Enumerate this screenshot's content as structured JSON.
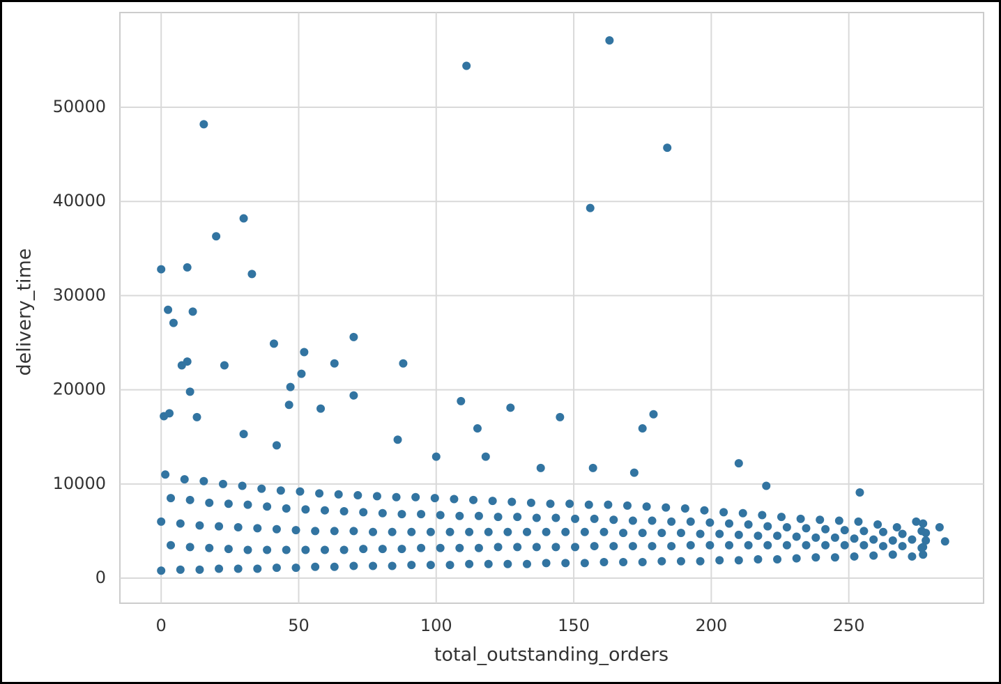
{
  "chart_data": {
    "type": "scatter",
    "xlabel": "total_outstanding_orders",
    "ylabel": "delivery_time",
    "color": "#3274a1",
    "grid": true,
    "xlim": [
      -15,
      299
    ],
    "ylim": [
      -2660,
      60060
    ],
    "xticks": [
      0,
      50,
      100,
      150,
      200,
      250
    ],
    "yticks": [
      0,
      10000,
      20000,
      30000,
      40000,
      50000
    ],
    "x": [
      0,
      3.5,
      0,
      3.5,
      1.5,
      7,
      10.5,
      7,
      10.5,
      8.5,
      14,
      17.5,
      14,
      17.5,
      15.5,
      21,
      24.5,
      21,
      24.5,
      22.5,
      28,
      31.5,
      28,
      31.5,
      29.5,
      35,
      38.5,
      35,
      38.5,
      36.5,
      42,
      45.5,
      42,
      45.5,
      43.5,
      49,
      52.5,
      49,
      52.5,
      50.5,
      56,
      59.5,
      56,
      59.5,
      57.5,
      63,
      66.5,
      63,
      66.5,
      64.5,
      70,
      73.5,
      70,
      73.5,
      71.5,
      77,
      80.5,
      77,
      80.5,
      78.5,
      84,
      87.5,
      84,
      87.5,
      85.5,
      91,
      94.5,
      91,
      94.5,
      92.5,
      98,
      101.5,
      98,
      101.5,
      99.5,
      105,
      108.5,
      105,
      108.5,
      106.5,
      112,
      115.5,
      112,
      115.5,
      113.5,
      119,
      122.5,
      119,
      122.5,
      120.5,
      126,
      129.5,
      126,
      129.5,
      127.5,
      133,
      136.5,
      133,
      136.5,
      134.5,
      140,
      143.5,
      140,
      143.5,
      141.5,
      147,
      150.5,
      147,
      150.5,
      148.5,
      154,
      157.5,
      154,
      157.5,
      155.5,
      161,
      164.5,
      161,
      164.5,
      162.5,
      168,
      171.5,
      168,
      171.5,
      169.5,
      175,
      178.5,
      175,
      178.5,
      176.5,
      182,
      185.5,
      182,
      185.5,
      183.5,
      189,
      192.5,
      189,
      192.5,
      190.5,
      196,
      199.5,
      196,
      199.5,
      197.5,
      203,
      206.5,
      203,
      206.5,
      204.5,
      210,
      213.5,
      210,
      213.5,
      211.5,
      217,
      220.5,
      217,
      220.5,
      218.5,
      224,
      227.5,
      224,
      227.5,
      225.5,
      231,
      234.5,
      231,
      234.5,
      232.5,
      238,
      241.5,
      238,
      241.5,
      239.5,
      245,
      248.5,
      245,
      248.5,
      246.5,
      252,
      255.5,
      252,
      255.5,
      253.5,
      259,
      262.5,
      259,
      262.5,
      260.5,
      266,
      269.5,
      266,
      269.5,
      267.5,
      273,
      276.5,
      273,
      276.5,
      274.5,
      277,
      277,
      278,
      278,
      277,
      163,
      111,
      15.5,
      184,
      156,
      30,
      20,
      0,
      9.5,
      33,
      2.5,
      11.5,
      4.5,
      41,
      52,
      70,
      7.5,
      9.5,
      23,
      63,
      88,
      47,
      51,
      10.5,
      70,
      46.5,
      58,
      109,
      127,
      145,
      179,
      175,
      115,
      210,
      254,
      283,
      285,
      220,
      1,
      3,
      13,
      30,
      42,
      86,
      100,
      138,
      157,
      118,
      172
    ],
    "y": [
      800,
      3500,
      6000,
      8500,
      11000,
      900,
      3300,
      5800,
      8300,
      10500,
      900,
      3200,
      5600,
      8000,
      10300,
      1000,
      3100,
      5500,
      7900,
      10000,
      1000,
      3000,
      5400,
      7800,
      9800,
      1000,
      3000,
      5300,
      7600,
      9500,
      1100,
      3000,
      5200,
      7400,
      9300,
      1100,
      3000,
      5100,
      7300,
      9200,
      1200,
      3000,
      5000,
      7200,
      9000,
      1200,
      3000,
      5000,
      7100,
      8900,
      1300,
      3100,
      5000,
      7000,
      8800,
      1300,
      3100,
      4900,
      6900,
      8700,
      1300,
      3100,
      4900,
      6800,
      8600,
      1400,
      3200,
      4900,
      6800,
      8600,
      1400,
      3200,
      4900,
      6700,
      8500,
      1400,
      3200,
      4900,
      6600,
      8400,
      1500,
      3200,
      4900,
      6600,
      8300,
      1500,
      3300,
      4900,
      6500,
      8200,
      1500,
      3300,
      4900,
      6500,
      8100,
      1500,
      3300,
      4900,
      6400,
      8000,
      1600,
      3300,
      4900,
      6400,
      7900,
      1600,
      3300,
      4900,
      6300,
      7900,
      1600,
      3400,
      4900,
      6300,
      7800,
      1700,
      3400,
      4900,
      6200,
      7800,
      1700,
      3400,
      4800,
      6100,
      7700,
      1700,
      3400,
      4800,
      6100,
      7600,
      1800,
      3400,
      4800,
      6000,
      7500,
      1800,
      3500,
      4800,
      6000,
      7400,
      1800,
      3500,
      4700,
      5900,
      7200,
      1900,
      3500,
      4700,
      5800,
      7000,
      1900,
      3500,
      4600,
      5700,
      6900,
      2000,
      3500,
      4500,
      5500,
      6700,
      2000,
      3500,
      4500,
      5400,
      6500,
      2100,
      3500,
      4400,
      5300,
      6300,
      2200,
      3500,
      4300,
      5200,
      6200,
      2200,
      3500,
      4300,
      5100,
      6100,
      2300,
      3500,
      4200,
      5000,
      6000,
      2400,
      3400,
      4100,
      4900,
      5700,
      2500,
      3400,
      4000,
      4700,
      5400,
      2300,
      3200,
      4100,
      5000,
      6000,
      2500,
      3300,
      4000,
      4800,
      5800,
      57100,
      54400,
      48200,
      45700,
      39300,
      38200,
      36300,
      32800,
      33000,
      32300,
      28500,
      28300,
      27100,
      24900,
      24000,
      25600,
      22600,
      23000,
      22600,
      22800,
      22800,
      20300,
      21700,
      19800,
      19400,
      18400,
      18000,
      18800,
      18100,
      17100,
      17400,
      15900,
      15900,
      12200,
      9100,
      5400,
      3900,
      9800,
      17200,
      17500,
      17100,
      15300,
      14100,
      14700,
      12900,
      11700,
      11700,
      12900,
      11200
    ]
  }
}
